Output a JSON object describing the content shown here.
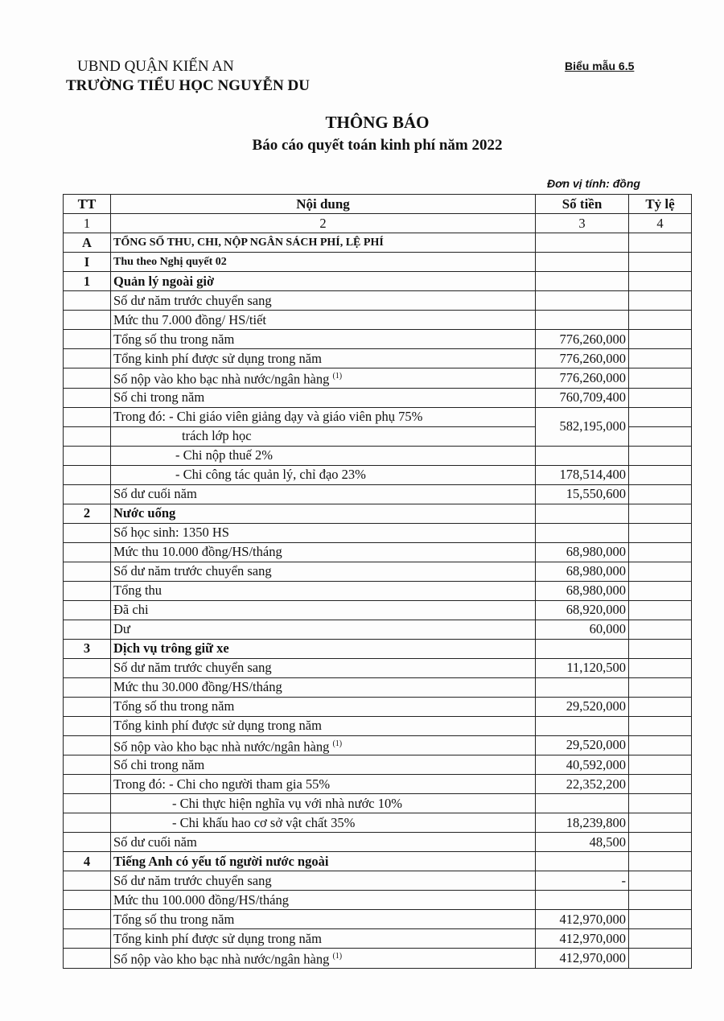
{
  "header": {
    "org_line1": "UBND QUẬN KIẾN AN",
    "org_line2": "TRƯỜNG TIỂU HỌC NGUYỄN DU",
    "form_code": "Biểu mẫu 6.5",
    "title": "THÔNG BÁO",
    "subtitle": "Báo cáo quyết toán kinh phí năm 2022",
    "unit": "Đơn vị tính: đồng"
  },
  "table": {
    "columns": [
      "TT",
      "Nội dung",
      "Số tiền",
      "Tỷ lệ"
    ],
    "column_numbers": [
      "1",
      "2",
      "3",
      "4"
    ],
    "rows": [
      {
        "tt": "A",
        "content": "TỔNG SỐ THU, CHI, NỘP NGÂN SÁCH PHÍ, LỆ PHÍ",
        "amount": "",
        "style": "bold small"
      },
      {
        "tt": "I",
        "content": "Thu theo Nghị quyết 02",
        "amount": "",
        "style": "bold small"
      },
      {
        "tt": "1",
        "content": "Quản lý ngoài giờ",
        "amount": "",
        "style": "bold"
      },
      {
        "tt": "",
        "content": "Số dư năm trước chuyển sang",
        "amount": ""
      },
      {
        "tt": "",
        "content": "Mức thu 7.000 đồng/ HS/tiết",
        "amount": ""
      },
      {
        "tt": "",
        "content": "Tổng số thu trong năm",
        "amount": "776,260,000"
      },
      {
        "tt": "",
        "content": "Tổng kinh phí được sử dụng trong năm",
        "amount": "776,260,000"
      },
      {
        "tt": "",
        "content": "Số nộp vào kho bạc nhà nước/ngân hàng",
        "sup": "(1)",
        "amount": "776,260,000"
      },
      {
        "tt": "",
        "content": "Số chi trong năm",
        "amount": "760,709,400"
      },
      {
        "tt": "",
        "content": "Trong đó: - Chi giáo viên giảng dạy và giáo viên phụ 75%",
        "amount": "582,195,000",
        "rowspan": 2
      },
      {
        "tt": "",
        "content": "trách lớp học",
        "indent": 88,
        "merged": true
      },
      {
        "tt": "",
        "content": "- Chi nộp thuế 2%",
        "indent": 80,
        "amount": ""
      },
      {
        "tt": "",
        "content": "- Chi công tác quản lý, chỉ đạo 23%",
        "indent": 80,
        "amount": "178,514,400"
      },
      {
        "tt": "",
        "content": "Số dư cuối năm",
        "amount": "15,550,600"
      },
      {
        "tt": "2",
        "content": "Nước uống",
        "amount": "",
        "style": "bold"
      },
      {
        "tt": "",
        "content": "Số học sinh: 1350 HS",
        "amount": ""
      },
      {
        "tt": "",
        "content": "Mức thu 10.000 đồng/HS/tháng",
        "amount": "68,980,000"
      },
      {
        "tt": "",
        "content": "Số dư năm trước chuyển sang",
        "amount": "68,980,000"
      },
      {
        "tt": "",
        "content": "Tổng thu",
        "amount": "68,980,000"
      },
      {
        "tt": "",
        "content": "Đã chi",
        "amount": "68,920,000"
      },
      {
        "tt": "",
        "content": "Dư",
        "amount": "60,000"
      },
      {
        "tt": "3",
        "content": "Dịch vụ trông giữ xe",
        "amount": "",
        "style": "bold"
      },
      {
        "tt": "",
        "content": "Số dư năm trước chuyển sang",
        "amount": "11,120,500"
      },
      {
        "tt": "",
        "content": "Mức thu 30.000 đồng/HS/tháng",
        "amount": ""
      },
      {
        "tt": "",
        "content": "Tổng số thu trong năm",
        "amount": "29,520,000"
      },
      {
        "tt": "",
        "content": "Tổng kinh phí được sử dụng trong năm",
        "amount": ""
      },
      {
        "tt": "",
        "content": "Số nộp vào kho bạc nhà nước/ngân hàng",
        "sup": "(1)",
        "amount": "29,520,000"
      },
      {
        "tt": "",
        "content": "Số chi trong năm",
        "amount": "40,592,000"
      },
      {
        "tt": "",
        "content": "Trong đó: - Chi cho người tham gia 55%",
        "amount": "22,352,200"
      },
      {
        "tt": "",
        "content": "- Chi thực hiện nghĩa vụ với nhà nước 10%",
        "indent": 76,
        "amount": ""
      },
      {
        "tt": "",
        "content": "- Chi khấu hao cơ sở vật chất 35%",
        "indent": 76,
        "amount": "18,239,800"
      },
      {
        "tt": "",
        "content": "Số dư cuối năm",
        "amount": "48,500"
      },
      {
        "tt": "4",
        "content": "Tiếng Anh có yếu tố người nước ngoài",
        "amount": "",
        "style": "bold"
      },
      {
        "tt": "",
        "content": "Số dư năm trước chuyển sang",
        "amount": "-"
      },
      {
        "tt": "",
        "content": "Mức thu 100.000 đồng/HS/tháng",
        "amount": ""
      },
      {
        "tt": "",
        "content": "Tổng số thu trong năm",
        "amount": "412,970,000"
      },
      {
        "tt": "",
        "content": "Tổng kinh phí được sử dụng trong năm",
        "amount": "412,970,000"
      },
      {
        "tt": "",
        "content": "Số nộp vào kho bạc nhà nước/ngân hàng",
        "sup": "(1)",
        "amount": "412,970,000"
      }
    ]
  }
}
